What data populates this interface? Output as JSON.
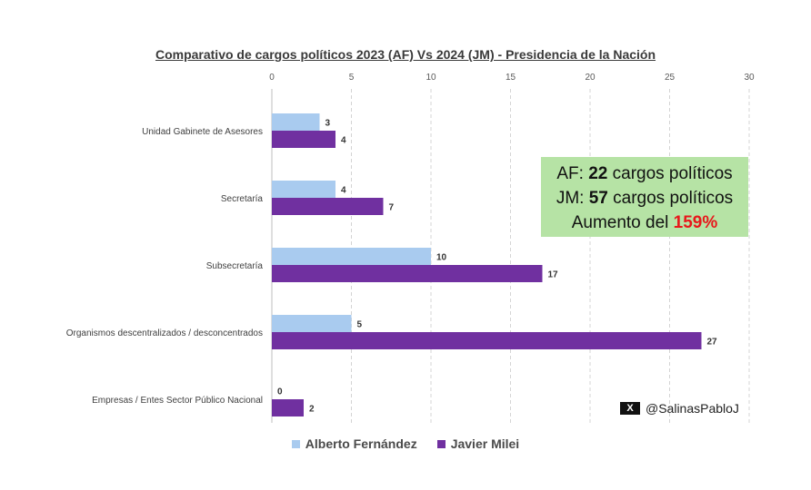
{
  "colors": {
    "af": "#a9cbef",
    "jm": "#7030a0",
    "summary_bg": "#b6e3a5",
    "highlight": "#e8171b"
  },
  "summary": {
    "af_prefix": "AF: ",
    "af_count": "22",
    "af_suffix": " cargos políticos",
    "jm_prefix": "JM: ",
    "jm_count": "57",
    "jm_suffix": " cargos políticos",
    "increase_prefix": "Aumento del ",
    "increase_value": "159%"
  },
  "credit": {
    "icon": "x-logo-icon",
    "icon_text": "X",
    "handle": "@SalinasPabloJ"
  },
  "chart_data": {
    "type": "bar",
    "orientation": "horizontal",
    "title": "Comparativo de cargos políticos 2023 (AF)  Vs 2024 (JM) - Presidencia de la Nación",
    "categories": [
      "Unidad Gabinete de Asesores",
      "Secretaría",
      "Subsecretaría",
      "Organismos descentralizados / desconcentrados",
      "Empresas / Entes Sector Público Nacional"
    ],
    "series": [
      {
        "name": "Alberto Fernández",
        "values": [
          3,
          4,
          10,
          5,
          0
        ]
      },
      {
        "name": "Javier Milei",
        "values": [
          4,
          7,
          17,
          27,
          2
        ]
      }
    ],
    "xlim": [
      0,
      30
    ],
    "ticks": [
      0,
      5,
      10,
      15,
      20,
      25,
      30
    ],
    "axis_position": "top",
    "grid": true,
    "legend": "bottom"
  }
}
